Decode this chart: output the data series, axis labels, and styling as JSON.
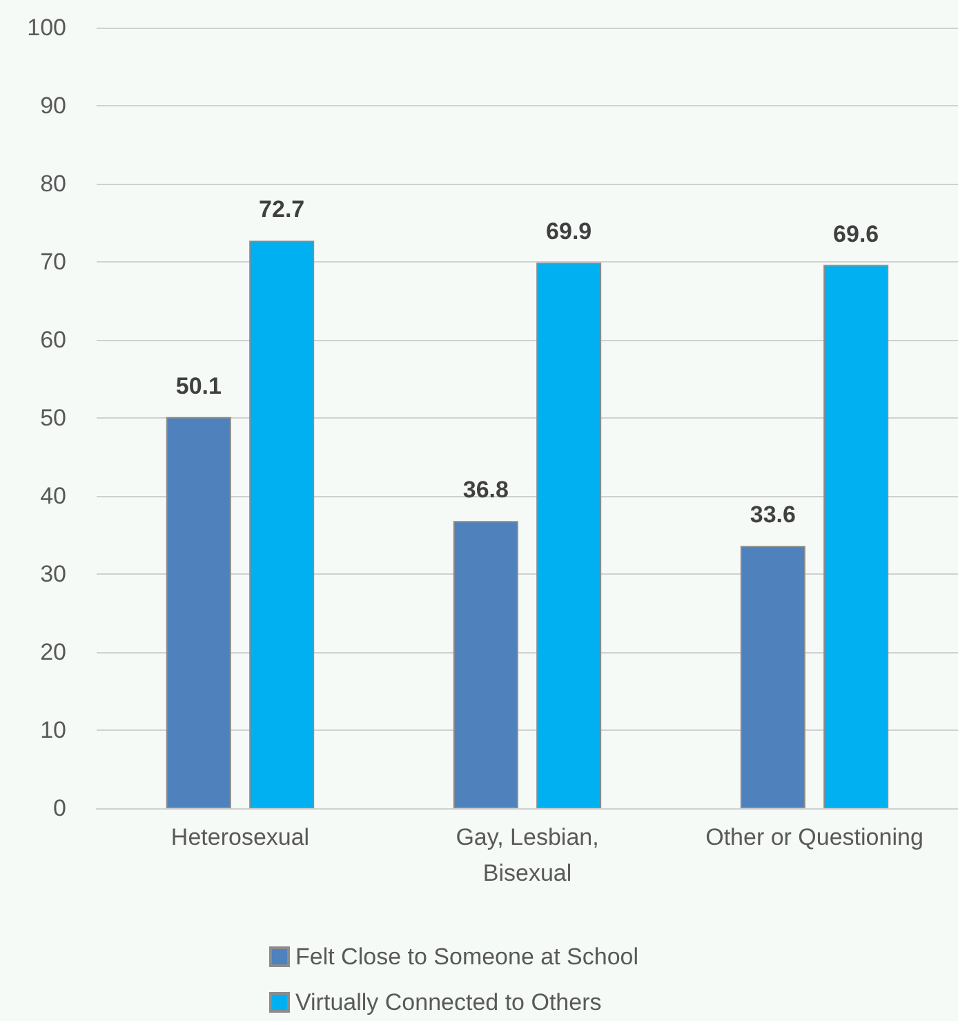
{
  "chart_data": {
    "type": "bar",
    "categories": [
      "Heterosexual",
      "Gay, Lesbian, Bisexual",
      "Other or Questioning"
    ],
    "series": [
      {
        "name": "Felt Close to Someone at School",
        "color": "#4f81bd",
        "values": [
          50.1,
          36.8,
          33.6
        ]
      },
      {
        "name": "Virtually Connected to Others",
        "color": "#00b0f0",
        "values": [
          72.7,
          69.9,
          69.6
        ]
      }
    ],
    "ylim": [
      0,
      100
    ],
    "yticks": [
      0,
      10,
      20,
      30,
      40,
      50,
      60,
      70,
      80,
      90,
      100
    ],
    "grid": "y",
    "legend": "bottom",
    "data_labels": true
  }
}
